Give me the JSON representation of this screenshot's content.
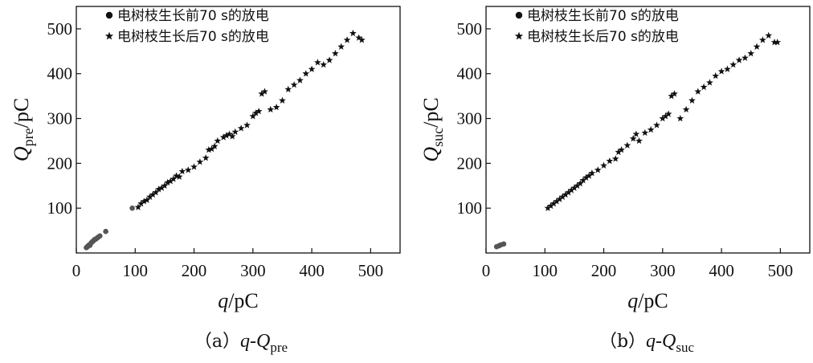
{
  "chart_data": [
    {
      "type": "scatter",
      "panel": "a",
      "caption": {
        "prefix": "（a）",
        "var_q": "q",
        "dash": "-",
        "var_Q": "Q",
        "sub": "pre"
      },
      "xlabel": {
        "var": "q",
        "unit": "/pC"
      },
      "ylabel": {
        "var": "Q",
        "sub": "pre",
        "unit": "/pC"
      },
      "xlim": [
        0,
        550
      ],
      "ylim": [
        0,
        550
      ],
      "xticks": [
        0,
        100,
        200,
        300,
        400,
        500
      ],
      "yticks": [
        100,
        200,
        300,
        400,
        500
      ],
      "grid": false,
      "legend_position": "top-left",
      "series": [
        {
          "name": "电树枝生长前70 s的放电",
          "marker": "circle",
          "color": "#555555",
          "points": [
            [
              17,
              12
            ],
            [
              19,
              14
            ],
            [
              20,
              16
            ],
            [
              22,
              18
            ],
            [
              23,
              17
            ],
            [
              25,
              22
            ],
            [
              27,
              25
            ],
            [
              29,
              27
            ],
            [
              31,
              30
            ],
            [
              33,
              31
            ],
            [
              35,
              33
            ],
            [
              37,
              35
            ],
            [
              40,
              38
            ],
            [
              50,
              48
            ],
            [
              95,
              100
            ]
          ]
        },
        {
          "name": "电树枝生长后70 s的放电",
          "marker": "star",
          "color": "#111111",
          "points": [
            [
              105,
              102
            ],
            [
              110,
              110
            ],
            [
              115,
              115
            ],
            [
              120,
              118
            ],
            [
              125,
              125
            ],
            [
              130,
              130
            ],
            [
              135,
              135
            ],
            [
              140,
              142
            ],
            [
              145,
              145
            ],
            [
              150,
              150
            ],
            [
              155,
              157
            ],
            [
              160,
              160
            ],
            [
              165,
              165
            ],
            [
              170,
              172
            ],
            [
              175,
              170
            ],
            [
              180,
              182
            ],
            [
              190,
              185
            ],
            [
              200,
              192
            ],
            [
              210,
              203
            ],
            [
              220,
              212
            ],
            [
              225,
              230
            ],
            [
              230,
              232
            ],
            [
              235,
              238
            ],
            [
              240,
              250
            ],
            [
              250,
              258
            ],
            [
              255,
              262
            ],
            [
              260,
              265
            ],
            [
              265,
              260
            ],
            [
              270,
              270
            ],
            [
              280,
              278
            ],
            [
              290,
              285
            ],
            [
              300,
              305
            ],
            [
              305,
              312
            ],
            [
              310,
              316
            ],
            [
              315,
              355
            ],
            [
              320,
              360
            ],
            [
              330,
              320
            ],
            [
              340,
              325
            ],
            [
              350,
              340
            ],
            [
              360,
              365
            ],
            [
              370,
              375
            ],
            [
              380,
              385
            ],
            [
              390,
              400
            ],
            [
              400,
              410
            ],
            [
              410,
              425
            ],
            [
              420,
              420
            ],
            [
              430,
              430
            ],
            [
              440,
              445
            ],
            [
              450,
              460
            ],
            [
              460,
              475
            ],
            [
              470,
              490
            ],
            [
              480,
              480
            ],
            [
              485,
              475
            ]
          ]
        }
      ]
    },
    {
      "type": "scatter",
      "panel": "b",
      "caption": {
        "prefix": "（b）",
        "var_q": "q",
        "dash": "-",
        "var_Q": "Q",
        "sub": "suc"
      },
      "xlabel": {
        "var": "q",
        "unit": "/pC"
      },
      "ylabel": {
        "var": "Q",
        "sub": "suc",
        "unit": "/pC"
      },
      "xlim": [
        0,
        550
      ],
      "ylim": [
        0,
        550
      ],
      "xticks": [
        0,
        100,
        200,
        300,
        400,
        500
      ],
      "yticks": [
        100,
        200,
        300,
        400,
        500
      ],
      "grid": false,
      "legend_position": "top-left",
      "series": [
        {
          "name": "电树枝生长前70 s的放电",
          "marker": "circle",
          "color": "#555555",
          "points": [
            [
              18,
              14
            ],
            [
              22,
              16
            ],
            [
              25,
              18
            ],
            [
              30,
              20
            ]
          ]
        },
        {
          "name": "电树枝生长后70 s的放电",
          "marker": "star",
          "color": "#111111",
          "points": [
            [
              105,
              100
            ],
            [
              110,
              105
            ],
            [
              115,
              110
            ],
            [
              120,
              115
            ],
            [
              125,
              120
            ],
            [
              130,
              125
            ],
            [
              135,
              130
            ],
            [
              140,
              135
            ],
            [
              145,
              140
            ],
            [
              150,
              145
            ],
            [
              155,
              150
            ],
            [
              160,
              155
            ],
            [
              165,
              162
            ],
            [
              170,
              168
            ],
            [
              175,
              172
            ],
            [
              180,
              178
            ],
            [
              190,
              185
            ],
            [
              200,
              195
            ],
            [
              210,
              205
            ],
            [
              220,
              210
            ],
            [
              225,
              225
            ],
            [
              230,
              230
            ],
            [
              240,
              240
            ],
            [
              250,
              255
            ],
            [
              255,
              265
            ],
            [
              260,
              250
            ],
            [
              270,
              268
            ],
            [
              280,
              275
            ],
            [
              290,
              285
            ],
            [
              300,
              300
            ],
            [
              305,
              305
            ],
            [
              310,
              310
            ],
            [
              315,
              350
            ],
            [
              320,
              355
            ],
            [
              330,
              300
            ],
            [
              340,
              320
            ],
            [
              350,
              340
            ],
            [
              360,
              360
            ],
            [
              370,
              370
            ],
            [
              380,
              380
            ],
            [
              390,
              395
            ],
            [
              400,
              405
            ],
            [
              410,
              410
            ],
            [
              420,
              420
            ],
            [
              430,
              430
            ],
            [
              440,
              435
            ],
            [
              450,
              445
            ],
            [
              460,
              460
            ],
            [
              470,
              475
            ],
            [
              480,
              485
            ],
            [
              490,
              470
            ],
            [
              495,
              470
            ]
          ]
        }
      ]
    }
  ]
}
